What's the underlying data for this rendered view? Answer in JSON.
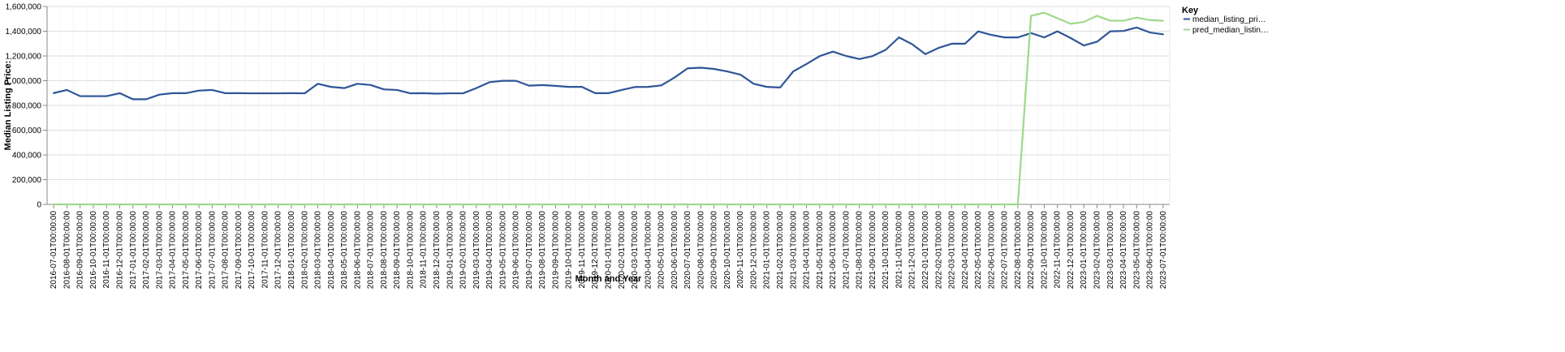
{
  "chart_data": {
    "type": "line",
    "xlabel": "Month and Year",
    "ylabel": "Median Listing Price:",
    "ylim": [
      0,
      1600000
    ],
    "y_ticks": [
      "0",
      "200,000",
      "400,000",
      "600,000",
      "800,000",
      "1,000,000",
      "1,200,000",
      "1,400,000",
      "1,600,000"
    ],
    "grid": true,
    "legend": {
      "title": "Key",
      "position": "right"
    },
    "x": [
      "2016-07-01T00:00:00",
      "2016-08-01T00:00:00",
      "2016-09-01T00:00:00",
      "2016-10-01T00:00:00",
      "2016-11-01T00:00:00",
      "2016-12-01T00:00:00",
      "2017-01-01T00:00:00",
      "2017-02-01T00:00:00",
      "2017-03-01T00:00:00",
      "2017-04-01T00:00:00",
      "2017-05-01T00:00:00",
      "2017-06-01T00:00:00",
      "2017-07-01T00:00:00",
      "2017-08-01T00:00:00",
      "2017-09-01T00:00:00",
      "2017-10-01T00:00:00",
      "2017-11-01T00:00:00",
      "2017-12-01T00:00:00",
      "2018-01-01T00:00:00",
      "2018-02-01T00:00:00",
      "2018-03-01T00:00:00",
      "2018-04-01T00:00:00",
      "2018-05-01T00:00:00",
      "2018-06-01T00:00:00",
      "2018-07-01T00:00:00",
      "2018-08-01T00:00:00",
      "2018-09-01T00:00:00",
      "2018-10-01T00:00:00",
      "2018-11-01T00:00:00",
      "2018-12-01T00:00:00",
      "2019-01-01T00:00:00",
      "2019-02-01T00:00:00",
      "2019-03-01T00:00:00",
      "2019-04-01T00:00:00",
      "2019-05-01T00:00:00",
      "2019-06-01T00:00:00",
      "2019-07-01T00:00:00",
      "2019-08-01T00:00:00",
      "2019-09-01T00:00:00",
      "2019-10-01T00:00:00",
      "2019-11-01T00:00:00",
      "2019-12-01T00:00:00",
      "2020-01-01T00:00:00",
      "2020-02-01T00:00:00",
      "2020-03-01T00:00:00",
      "2020-04-01T00:00:00",
      "2020-05-01T00:00:00",
      "2020-06-01T00:00:00",
      "2020-07-01T00:00:00",
      "2020-08-01T00:00:00",
      "2020-09-01T00:00:00",
      "2020-10-01T00:00:00",
      "2020-11-01T00:00:00",
      "2020-12-01T00:00:00",
      "2021-01-01T00:00:00",
      "2021-02-01T00:00:00",
      "2021-03-01T00:00:00",
      "2021-04-01T00:00:00",
      "2021-05-01T00:00:00",
      "2021-06-01T00:00:00",
      "2021-07-01T00:00:00",
      "2021-08-01T00:00:00",
      "2021-09-01T00:00:00",
      "2021-10-01T00:00:00",
      "2021-11-01T00:00:00",
      "2021-12-01T00:00:00",
      "2022-01-01T00:00:00",
      "2022-02-01T00:00:00",
      "2022-03-01T00:00:00",
      "2022-04-01T00:00:00",
      "2022-05-01T00:00:00",
      "2022-06-01T00:00:00",
      "2022-07-01T00:00:00",
      "2022-08-01T00:00:00",
      "2022-09-01T00:00:00",
      "2022-10-01T00:00:00",
      "2022-11-01T00:00:00",
      "2022-12-01T00:00:00",
      "2023-01-01T00:00:00",
      "2023-02-01T00:00:00",
      "2023-03-01T00:00:00",
      "2023-04-01T00:00:00",
      "2023-05-01T00:00:00",
      "2023-06-01T00:00:00",
      "2023-07-01T00:00:00"
    ],
    "series": [
      {
        "name": "median_listing_pri…",
        "color": "#2e5597",
        "values": [
          900000,
          925000,
          875000,
          875000,
          875000,
          899000,
          850000,
          850000,
          887500,
          899000,
          899000,
          920000,
          925000,
          899000,
          899000,
          898000,
          898000,
          898000,
          899000,
          898000,
          975000,
          950000,
          940000,
          975000,
          965000,
          930000,
          925000,
          898000,
          899000,
          895000,
          898000,
          898000,
          940000,
          988000,
          999000,
          999000,
          960000,
          965000,
          958000,
          950000,
          950000,
          899000,
          899000,
          925000,
          949000,
          950000,
          962000,
          1025000,
          1100000,
          1105000,
          1095000,
          1075000,
          1049000,
          975000,
          950000,
          945000,
          1075000,
          1135000,
          1199000,
          1235000,
          1200000,
          1175000,
          1199000,
          1250000,
          1350000,
          1295000,
          1215000,
          1265000,
          1299000,
          1299000,
          1399000,
          1370000,
          1350000,
          1350000,
          1385000,
          1350000,
          1399000,
          1345000,
          1285000,
          1315000,
          1399000,
          1402000,
          1430000,
          1390000,
          1375000
        ]
      },
      {
        "name": "pred_median_listin…",
        "color": "#9fd98b",
        "values": [
          0,
          0,
          0,
          0,
          0,
          0,
          0,
          0,
          0,
          0,
          0,
          0,
          0,
          0,
          0,
          0,
          0,
          0,
          0,
          0,
          0,
          0,
          0,
          0,
          0,
          0,
          0,
          0,
          0,
          0,
          0,
          0,
          0,
          0,
          0,
          0,
          0,
          0,
          0,
          0,
          0,
          0,
          0,
          0,
          0,
          0,
          0,
          0,
          0,
          0,
          0,
          0,
          0,
          0,
          0,
          0,
          0,
          0,
          0,
          0,
          0,
          0,
          0,
          0,
          0,
          0,
          0,
          0,
          0,
          0,
          0,
          0,
          0,
          0,
          1525000,
          1550000,
          1505000,
          1460000,
          1475000,
          1525000,
          1485000,
          1485000,
          1510000,
          1490000,
          1485000
        ]
      }
    ]
  }
}
